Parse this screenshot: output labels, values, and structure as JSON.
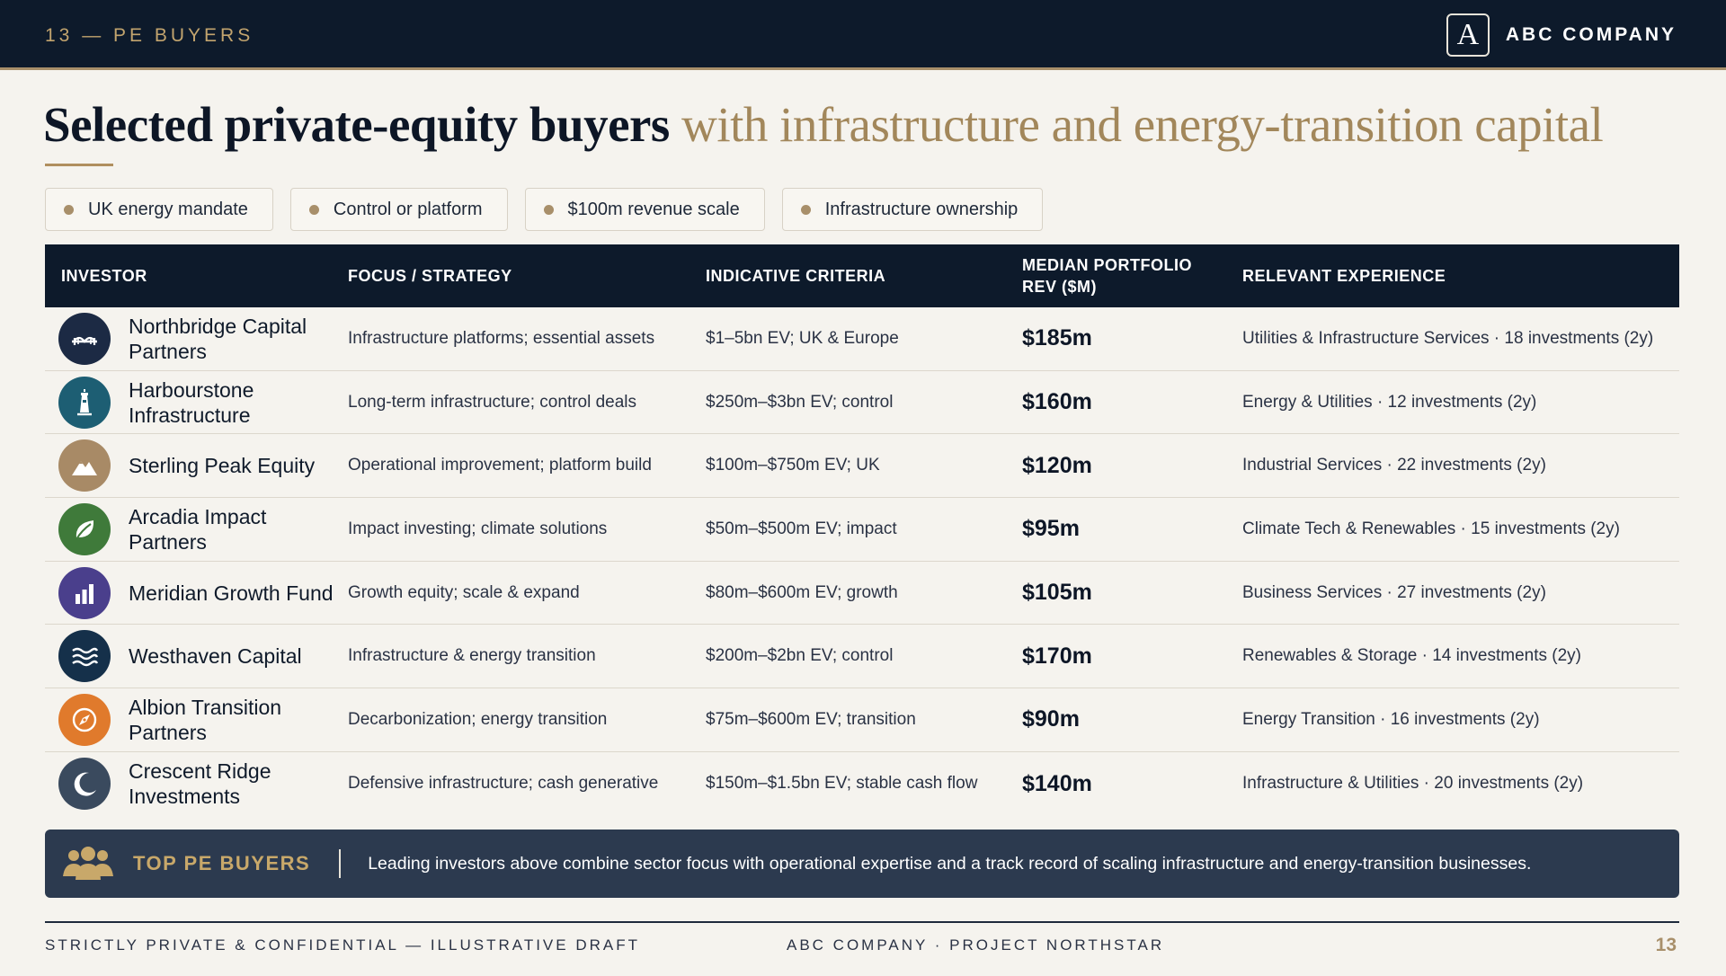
{
  "header": {
    "section_label": "13 — PE BUYERS",
    "brand_mark": "A",
    "brand_name": "ABC COMPANY"
  },
  "title": {
    "bold": "Selected private-equity buyers",
    "accent": "with infrastructure and energy-transition capital"
  },
  "tags": [
    {
      "label": "UK energy mandate"
    },
    {
      "label": "Control or platform"
    },
    {
      "label": "$100m revenue scale"
    },
    {
      "label": "Infrastructure ownership"
    }
  ],
  "table": {
    "columns": [
      "INVESTOR",
      "FOCUS / STRATEGY",
      "INDICATIVE CRITERIA",
      "MEDIAN PORTFOLIO REV ($M)",
      "RELEVANT EXPERIENCE"
    ],
    "rows": [
      {
        "investor": "Northbridge Capital Partners",
        "focus": "Infrastructure platforms; essential assets",
        "criteria": "$1–5bn EV; UK & Europe",
        "revenue": "$185m",
        "experience": "Utilities & Infrastructure Services · 18 investments (2y)",
        "icon": "bridge-icon",
        "color": "#1c2a44"
      },
      {
        "investor": "Harbourstone Infrastructure",
        "focus": "Long-term infrastructure; control deals",
        "criteria": "$250m–$3bn EV; control",
        "revenue": "$160m",
        "experience": "Energy & Utilities · 12 investments (2y)",
        "icon": "lighthouse-icon",
        "color": "#1d5e73"
      },
      {
        "investor": "Sterling Peak Equity",
        "focus": "Operational improvement; platform build",
        "criteria": "$100m–$750m EV; UK",
        "revenue": "$120m",
        "experience": "Industrial Services · 22 investments (2y)",
        "icon": "mountain-icon",
        "color": "#a88a66"
      },
      {
        "investor": "Arcadia Impact Partners",
        "focus": "Impact investing; climate solutions",
        "criteria": "$50m–$500m EV; impact",
        "revenue": "$95m",
        "experience": "Climate Tech & Renewables · 15 investments (2y)",
        "icon": "leaf-icon",
        "color": "#3f7a3a"
      },
      {
        "investor": "Meridian Growth Fund",
        "focus": "Growth equity; scale & expand",
        "criteria": "$80m–$600m EV; growth",
        "revenue": "$105m",
        "experience": "Business Services · 27 investments (2y)",
        "icon": "bar-chart-icon",
        "color": "#4a3f8c"
      },
      {
        "investor": "Westhaven Capital",
        "focus": "Infrastructure & energy transition",
        "criteria": "$200m–$2bn EV; control",
        "revenue": "$170m",
        "experience": "Renewables & Storage · 14 investments (2y)",
        "icon": "waves-icon",
        "color": "#15304a"
      },
      {
        "investor": "Albion Transition Partners",
        "focus": "Decarbonization; energy transition",
        "criteria": "$75m–$600m EV; transition",
        "revenue": "$90m",
        "experience": "Energy Transition · 16 investments (2y)",
        "icon": "compass-icon",
        "color": "#e07a2c"
      },
      {
        "investor": "Crescent Ridge Investments",
        "focus": "Defensive infrastructure; cash generative",
        "criteria": "$150m–$1.5bn EV; stable cash flow",
        "revenue": "$140m",
        "experience": "Infrastructure & Utilities · 20 investments (2y)",
        "icon": "crescent-moon-icon",
        "color": "#3a4a5e"
      }
    ]
  },
  "banner": {
    "title": "TOP PE BUYERS",
    "text": "Leading investors above combine sector focus with operational expertise and a track record of scaling infrastructure and energy-transition businesses."
  },
  "footer": {
    "left": "STRICTLY PRIVATE & CONFIDENTIAL — ILLUSTRATIVE DRAFT",
    "middle": "ABC COMPANY · PROJECT NORTHSTAR",
    "page": "13"
  }
}
